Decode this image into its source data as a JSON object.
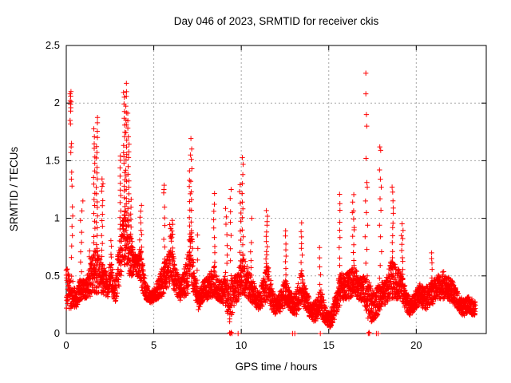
{
  "chart": {
    "title": "Day 046 of 2023, SRMTID for receiver ckis",
    "xlabel": "GPS time / hours",
    "ylabel": "SRMTID / TECUs"
  },
  "colors": {
    "marker": "#ff0000",
    "grid": "#a8a8a8",
    "axis": "#000000",
    "background": "#ffffff",
    "text": "#000000"
  },
  "chart_data": {
    "type": "scatter",
    "marker": "plus",
    "title": "Day 046 of 2023, SRMTID for receiver ckis",
    "xlabel": "GPS time / hours",
    "ylabel": "SRMTID / TECUs",
    "xlim": [
      0,
      24
    ],
    "ylim": [
      0,
      2.5
    ],
    "xticks": [
      0,
      5,
      10,
      15,
      20
    ],
    "xtick_labels": [
      "0",
      "5",
      "10",
      "15",
      "20"
    ],
    "yticks": [
      0,
      0.5,
      1,
      1.5,
      2,
      2.5
    ],
    "ytick_labels": [
      "0",
      "0.5",
      "1",
      "1.5",
      "2",
      "2.5"
    ],
    "grid": true,
    "legend": "none",
    "seed": 46,
    "sample_step_hours": 0.012,
    "t_end": 23.38,
    "band_envelope": [
      [
        0.0,
        0.22,
        0.58
      ],
      [
        0.3,
        0.2,
        0.5
      ],
      [
        0.55,
        0.22,
        0.35
      ],
      [
        0.8,
        0.28,
        0.48
      ],
      [
        1.1,
        0.3,
        0.45
      ],
      [
        1.35,
        0.32,
        0.6
      ],
      [
        1.55,
        0.35,
        0.7
      ],
      [
        1.8,
        0.35,
        0.75
      ],
      [
        2.1,
        0.35,
        0.6
      ],
      [
        2.35,
        0.3,
        0.5
      ],
      [
        2.55,
        0.38,
        0.65
      ],
      [
        2.8,
        0.26,
        0.42
      ],
      [
        3.0,
        0.4,
        0.8
      ],
      [
        3.2,
        0.55,
        1.0
      ],
      [
        3.4,
        0.6,
        1.1
      ],
      [
        3.6,
        0.5,
        1.0
      ],
      [
        3.8,
        0.5,
        0.75
      ],
      [
        4.0,
        0.52,
        0.68
      ],
      [
        4.25,
        0.42,
        0.75
      ],
      [
        4.5,
        0.3,
        0.45
      ],
      [
        4.85,
        0.26,
        0.36
      ],
      [
        5.2,
        0.3,
        0.45
      ],
      [
        5.55,
        0.32,
        0.6
      ],
      [
        5.8,
        0.4,
        0.7
      ],
      [
        6.0,
        0.45,
        0.9
      ],
      [
        6.2,
        0.35,
        0.6
      ],
      [
        6.55,
        0.28,
        0.45
      ],
      [
        7.0,
        0.35,
        0.75
      ],
      [
        7.15,
        0.4,
        0.9
      ],
      [
        7.35,
        0.3,
        0.5
      ],
      [
        7.55,
        0.2,
        0.35
      ],
      [
        7.8,
        0.26,
        0.45
      ],
      [
        8.1,
        0.3,
        0.5
      ],
      [
        8.45,
        0.32,
        0.6
      ],
      [
        8.75,
        0.28,
        0.45
      ],
      [
        9.1,
        0.25,
        0.5
      ],
      [
        9.35,
        0.08,
        0.45
      ],
      [
        9.6,
        0.25,
        0.5
      ],
      [
        9.9,
        0.3,
        0.6
      ],
      [
        10.1,
        0.35,
        0.7
      ],
      [
        10.4,
        0.3,
        0.55
      ],
      [
        10.7,
        0.25,
        0.45
      ],
      [
        11.0,
        0.2,
        0.35
      ],
      [
        11.3,
        0.25,
        0.5
      ],
      [
        11.5,
        0.3,
        0.65
      ],
      [
        11.75,
        0.2,
        0.4
      ],
      [
        12.0,
        0.15,
        0.3
      ],
      [
        12.3,
        0.2,
        0.4
      ],
      [
        12.55,
        0.25,
        0.5
      ],
      [
        12.8,
        0.2,
        0.35
      ],
      [
        13.1,
        0.15,
        0.35
      ],
      [
        13.45,
        0.25,
        0.55
      ],
      [
        13.7,
        0.2,
        0.4
      ],
      [
        14.0,
        0.1,
        0.25
      ],
      [
        14.3,
        0.1,
        0.3
      ],
      [
        14.55,
        0.15,
        0.4
      ],
      [
        14.85,
        0.08,
        0.2
      ],
      [
        15.1,
        0.05,
        0.18
      ],
      [
        15.4,
        0.15,
        0.35
      ],
      [
        15.65,
        0.25,
        0.55
      ],
      [
        15.9,
        0.3,
        0.5
      ],
      [
        16.2,
        0.3,
        0.55
      ],
      [
        16.45,
        0.35,
        0.6
      ],
      [
        16.7,
        0.3,
        0.5
      ],
      [
        17.0,
        0.25,
        0.5
      ],
      [
        17.3,
        0.1,
        0.45
      ],
      [
        17.6,
        0.1,
        0.35
      ],
      [
        17.9,
        0.2,
        0.45
      ],
      [
        18.2,
        0.25,
        0.45
      ],
      [
        18.55,
        0.3,
        0.65
      ],
      [
        18.8,
        0.3,
        0.6
      ],
      [
        19.1,
        0.3,
        0.55
      ],
      [
        19.4,
        0.2,
        0.4
      ],
      [
        19.65,
        0.15,
        0.3
      ],
      [
        19.9,
        0.2,
        0.35
      ],
      [
        20.2,
        0.25,
        0.45
      ],
      [
        20.5,
        0.2,
        0.4
      ],
      [
        20.9,
        0.25,
        0.45
      ],
      [
        21.2,
        0.3,
        0.5
      ],
      [
        21.5,
        0.3,
        0.55
      ],
      [
        21.8,
        0.3,
        0.5
      ],
      [
        22.1,
        0.25,
        0.45
      ],
      [
        22.4,
        0.2,
        0.35
      ],
      [
        22.7,
        0.15,
        0.3
      ],
      [
        23.0,
        0.18,
        0.32
      ],
      [
        23.38,
        0.15,
        0.28
      ]
    ],
    "spikes": [
      [
        0.85,
        0.45,
        1.07,
        0.05,
        8
      ],
      [
        1.35,
        0.55,
        0.72,
        0.04,
        5
      ],
      [
        1.6,
        0.6,
        1.78,
        0.04,
        20
      ],
      [
        1.75,
        0.6,
        1.88,
        0.04,
        22
      ],
      [
        2.05,
        0.55,
        1.35,
        0.04,
        14
      ],
      [
        2.55,
        0.6,
        0.8,
        0.04,
        5
      ],
      [
        3.1,
        0.9,
        1.55,
        0.05,
        12
      ],
      [
        3.3,
        1.0,
        2.1,
        0.05,
        20
      ],
      [
        3.42,
        1.0,
        2.17,
        0.04,
        20
      ],
      [
        3.55,
        0.95,
        1.9,
        0.04,
        16
      ],
      [
        3.67,
        0.8,
        1.15,
        0.04,
        7
      ],
      [
        4.25,
        0.7,
        1.1,
        0.06,
        9
      ],
      [
        5.6,
        0.55,
        1.3,
        0.04,
        9
      ],
      [
        6.0,
        0.85,
        0.97,
        0.09,
        8
      ],
      [
        7.05,
        0.8,
        1.4,
        0.04,
        10
      ],
      [
        7.15,
        0.8,
        1.68,
        0.04,
        11
      ],
      [
        7.5,
        0.45,
        0.85,
        0.03,
        5
      ],
      [
        8.45,
        0.55,
        1.21,
        0.04,
        10
      ],
      [
        9.15,
        0.45,
        1.1,
        0.05,
        9
      ],
      [
        9.4,
        0.4,
        1.18,
        0.04,
        8
      ],
      [
        9.95,
        0.55,
        1.3,
        0.05,
        10
      ],
      [
        10.08,
        0.6,
        1.54,
        0.04,
        13
      ],
      [
        10.55,
        0.5,
        0.78,
        0.04,
        5
      ],
      [
        11.45,
        0.6,
        1.06,
        0.05,
        12
      ],
      [
        12.55,
        0.45,
        0.89,
        0.04,
        9
      ],
      [
        13.45,
        0.5,
        0.95,
        0.04,
        9
      ],
      [
        14.5,
        0.35,
        0.75,
        0.035,
        6
      ],
      [
        15.62,
        0.5,
        1.22,
        0.04,
        10
      ],
      [
        16.4,
        0.55,
        1.22,
        0.06,
        10
      ],
      [
        18.65,
        0.6,
        1.28,
        0.05,
        12
      ],
      [
        19.2,
        0.5,
        0.95,
        0.05,
        9
      ],
      [
        20.9,
        0.4,
        0.7,
        0.03,
        5
      ]
    ],
    "outlier_points": [
      [
        0.22,
        2.08
      ],
      [
        0.25,
        2.06
      ],
      [
        0.27,
        2.1
      ],
      [
        0.24,
        1.99
      ],
      [
        0.26,
        1.96
      ],
      [
        0.23,
        2.02
      ],
      [
        0.28,
        2.01
      ],
      [
        0.25,
        1.93
      ],
      [
        0.22,
        1.85
      ],
      [
        0.24,
        1.82
      ],
      [
        0.3,
        1.65
      ],
      [
        0.28,
        1.62
      ],
      [
        0.26,
        1.57
      ],
      [
        0.31,
        1.4
      ],
      [
        0.29,
        1.34
      ],
      [
        0.33,
        1.28
      ],
      [
        0.35,
        1.1
      ],
      [
        0.37,
        1.02
      ],
      [
        0.33,
        0.93
      ],
      [
        0.35,
        0.85
      ],
      [
        0.31,
        0.76
      ],
      [
        0.29,
        0.66
      ],
      [
        17.12,
        2.26
      ],
      [
        17.12,
        2.08
      ],
      [
        17.15,
        1.9
      ],
      [
        17.17,
        1.8
      ],
      [
        17.13,
        1.52
      ],
      [
        17.18,
        1.31
      ],
      [
        17.2,
        1.27
      ],
      [
        17.1,
        1.15
      ],
      [
        17.15,
        1.05
      ],
      [
        17.22,
        0.94
      ],
      [
        17.08,
        0.84
      ],
      [
        17.18,
        0.73
      ],
      [
        17.12,
        0.61
      ],
      [
        17.2,
        0.5
      ],
      [
        17.92,
        1.62
      ],
      [
        17.97,
        1.59
      ],
      [
        17.9,
        1.42
      ],
      [
        17.95,
        1.34
      ],
      [
        18.0,
        1.27
      ],
      [
        17.93,
        1.17
      ],
      [
        17.98,
        1.07
      ],
      [
        17.9,
        0.94
      ],
      [
        17.96,
        0.84
      ],
      [
        18.02,
        0.71
      ],
      [
        17.94,
        0.59
      ],
      [
        17.9,
        0.48
      ],
      [
        0.95,
        1.15
      ],
      [
        2.1,
        1.3
      ],
      [
        5.58,
        1.25
      ],
      [
        7.1,
        1.55
      ],
      [
        9.42,
        1.25
      ],
      [
        10.6,
        1.0
      ],
      [
        16.35,
        1.05
      ],
      [
        16.45,
        0.9
      ],
      [
        19.15,
        0.85
      ],
      [
        20.88,
        0.65
      ]
    ],
    "zero_points": [
      [
        9.33,
        0.005
      ],
      [
        9.38,
        0.0
      ],
      [
        9.42,
        0.01
      ],
      [
        9.47,
        0.0
      ],
      [
        9.82,
        0.0
      ],
      [
        12.93,
        0.0
      ],
      [
        13.06,
        0.0
      ],
      [
        14.52,
        0.0
      ],
      [
        17.26,
        0.0
      ],
      [
        17.3,
        0.01
      ],
      [
        17.33,
        0.0
      ],
      [
        17.72,
        0.0
      ],
      [
        17.82,
        0.0
      ]
    ]
  }
}
